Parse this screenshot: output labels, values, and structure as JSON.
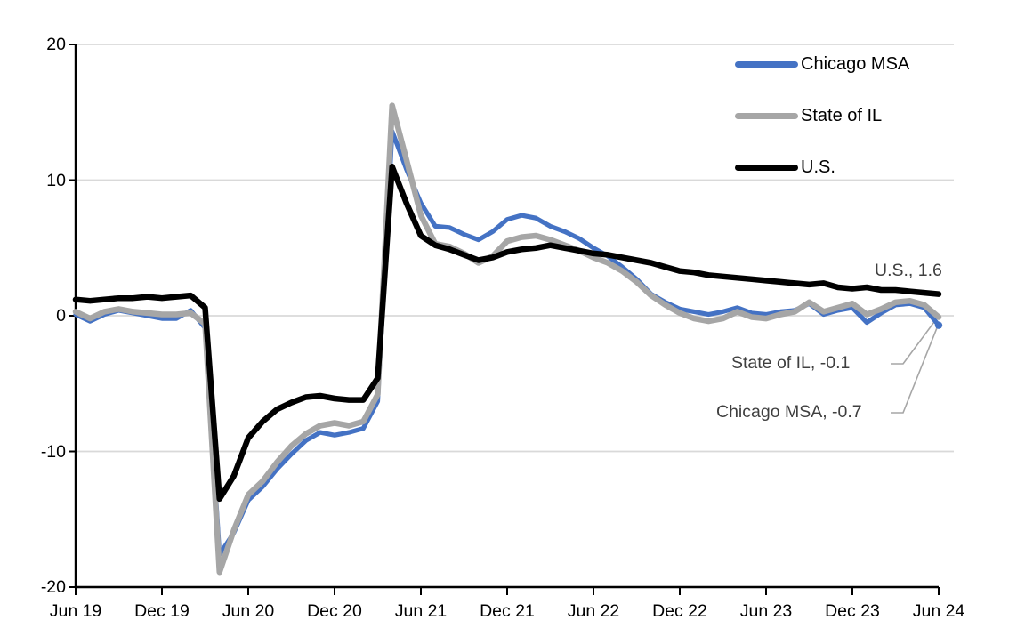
{
  "chart_data": {
    "type": "line",
    "title": "",
    "xlabel": "",
    "ylabel": "",
    "frequency": "monthly",
    "x_range": [
      "Jun 2019",
      "Jun 2024"
    ],
    "ylim": [
      -20,
      20
    ],
    "grid": true,
    "legend_position": "top-right",
    "x_tick_labels": [
      "Jun 19",
      "Dec 19",
      "Jun 20",
      "Dec 20",
      "Jun 21",
      "Dec 21",
      "Jun 22",
      "Dec 22",
      "Jun 23",
      "Dec 23",
      "Jun 24"
    ],
    "y_ticks": [
      20,
      10,
      0,
      -10,
      -20
    ],
    "series": [
      {
        "name": "Chicago MSA",
        "color": "#4472C4",
        "end_value": -0.7,
        "values": [
          0.1,
          -0.4,
          0.1,
          0.4,
          0.2,
          0.0,
          -0.2,
          -0.2,
          0.4,
          -0.9,
          -17.6,
          -16.0,
          -13.6,
          -12.6,
          -11.3,
          -10.2,
          -9.2,
          -8.6,
          -8.8,
          -8.6,
          -8.3,
          -6.3,
          13.6,
          10.8,
          8.3,
          6.6,
          6.5,
          6.0,
          5.6,
          6.2,
          7.1,
          7.4,
          7.2,
          6.6,
          6.2,
          5.7,
          5.0,
          4.4,
          3.6,
          2.7,
          1.6,
          1.0,
          0.5,
          0.3,
          0.1,
          0.3,
          0.6,
          0.2,
          0.1,
          0.3,
          0.4,
          0.9,
          0.1,
          0.4,
          0.6,
          -0.5,
          0.2,
          0.8,
          0.9,
          0.6,
          -0.7
        ]
      },
      {
        "name": "State of IL",
        "color": "#A6A6A6",
        "end_value": -0.1,
        "values": [
          0.3,
          -0.2,
          0.3,
          0.5,
          0.3,
          0.2,
          0.1,
          0.1,
          0.2,
          -0.6,
          -18.9,
          -15.8,
          -13.2,
          -12.2,
          -10.8,
          -9.6,
          -8.7,
          -8.1,
          -7.9,
          -8.1,
          -7.8,
          -5.8,
          15.5,
          11.5,
          7.4,
          5.3,
          5.1,
          4.6,
          3.9,
          4.4,
          5.5,
          5.8,
          5.9,
          5.6,
          5.2,
          4.8,
          4.3,
          3.9,
          3.3,
          2.5,
          1.5,
          0.8,
          0.2,
          -0.2,
          -0.4,
          -0.2,
          0.3,
          -0.1,
          -0.2,
          0.1,
          0.3,
          1.0,
          0.3,
          0.6,
          0.9,
          0.1,
          0.5,
          1.0,
          1.1,
          0.8,
          -0.1
        ]
      },
      {
        "name": "U.S.",
        "color": "#000000",
        "end_value": 1.6,
        "values": [
          1.2,
          1.1,
          1.2,
          1.3,
          1.3,
          1.4,
          1.3,
          1.4,
          1.5,
          0.6,
          -13.5,
          -11.8,
          -9.0,
          -7.8,
          -6.9,
          -6.4,
          -6.0,
          -5.9,
          -6.1,
          -6.2,
          -6.2,
          -4.6,
          11.0,
          8.3,
          5.9,
          5.2,
          4.9,
          4.5,
          4.1,
          4.3,
          4.7,
          4.9,
          5.0,
          5.2,
          5.0,
          4.8,
          4.6,
          4.5,
          4.3,
          4.1,
          3.9,
          3.6,
          3.3,
          3.2,
          3.0,
          2.9,
          2.8,
          2.7,
          2.6,
          2.5,
          2.4,
          2.3,
          2.4,
          2.1,
          2.0,
          2.1,
          1.9,
          1.9,
          1.8,
          1.7,
          1.6
        ]
      }
    ],
    "annotations": [
      {
        "series": "U.S.",
        "text": "U.S., 1.6"
      },
      {
        "series": "State of IL",
        "text": "State of IL, -0.1"
      },
      {
        "series": "Chicago MSA",
        "text": "Chicago MSA, -0.7"
      }
    ],
    "colors": {
      "gridline": "#D9D9D9",
      "axis": "#000000",
      "annotation_text": "#3F3F3F",
      "leader_line": "#A6A6A6",
      "background": "#FFFFFF"
    }
  }
}
